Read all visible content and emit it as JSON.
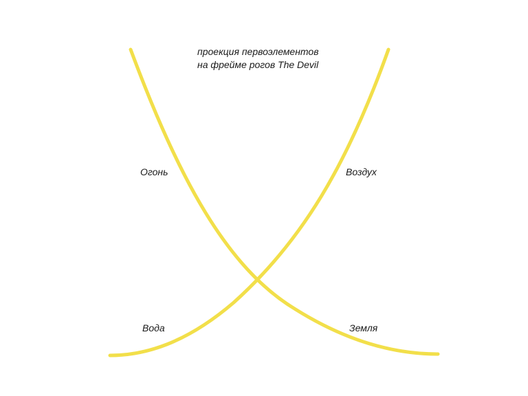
{
  "caption": {
    "line1": "проекция первоэлементов",
    "line2": "на фрейме рогов The Devil"
  },
  "elements": {
    "fire": "Огонь",
    "air": "Воздух",
    "water": "Вода",
    "earth": "Земля"
  },
  "colors": {
    "curve": "#f2df4a",
    "text": "#1a1a1a",
    "background": "#ffffff"
  }
}
